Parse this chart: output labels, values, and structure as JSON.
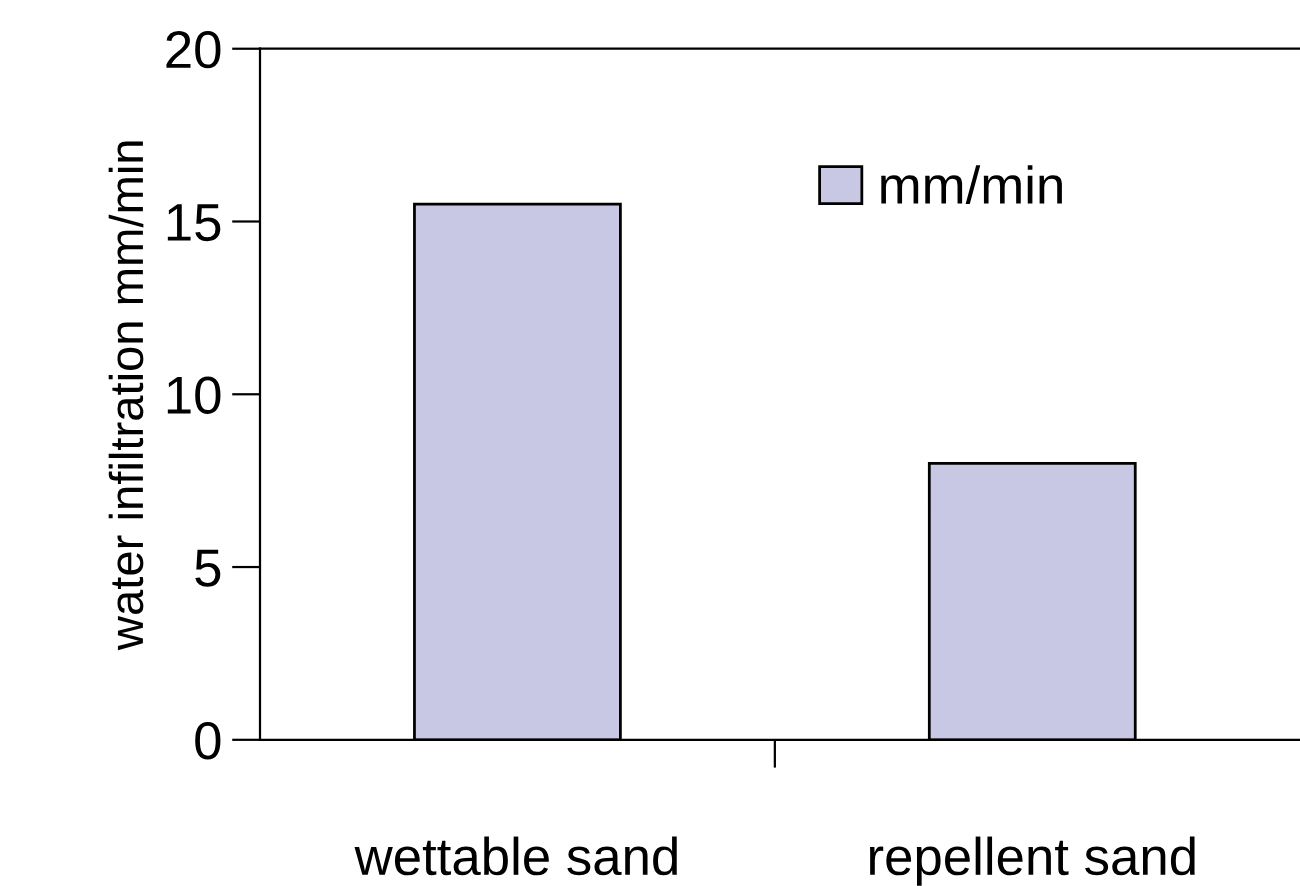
{
  "chart_data": {
    "type": "bar",
    "ylabel": "water infiltration mm/min",
    "categories": [
      "wettable sand",
      "repellent sand"
    ],
    "series": [
      {
        "name": "mm/min",
        "color": "#c8c8e4",
        "values": [
          15.5,
          8.0
        ]
      }
    ],
    "ylim": [
      0,
      20
    ],
    "yticks": [
      0,
      5,
      10,
      15,
      20
    ],
    "grid": false,
    "legend": "top right"
  }
}
